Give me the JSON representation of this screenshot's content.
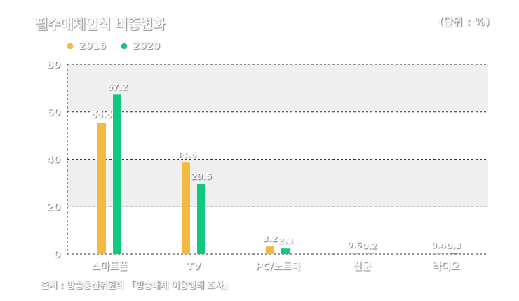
{
  "header": {
    "title": "필수매체인식 비중변화",
    "unit": "(단위 : %)"
  },
  "footer": {
    "source": "출처 : 방송통신위원회 「방송매체 이용행태 조사」"
  },
  "colors": {
    "series_2016": "#f6b93f",
    "series_2020": "#0ec97f",
    "band": "#efefef",
    "grid": "#333333"
  },
  "chart_data": {
    "type": "bar",
    "title": "필수매체인식 비중변화",
    "ylim": [
      0,
      80
    ],
    "yticks": [
      0,
      20,
      40,
      60,
      80
    ],
    "grid": true,
    "legend_position": "top-left",
    "categories": [
      "스마트폰",
      "TV",
      "PC/노트북",
      "신문",
      "라디오"
    ],
    "series": [
      {
        "name": "2016",
        "color": "#f6b93f",
        "values": [
          55.5,
          38.6,
          3.2,
          0.6,
          0.4
        ]
      },
      {
        "name": "2020",
        "color": "#0ec97f",
        "values": [
          67.2,
          29.5,
          2.3,
          0.2,
          0.3
        ]
      }
    ]
  }
}
